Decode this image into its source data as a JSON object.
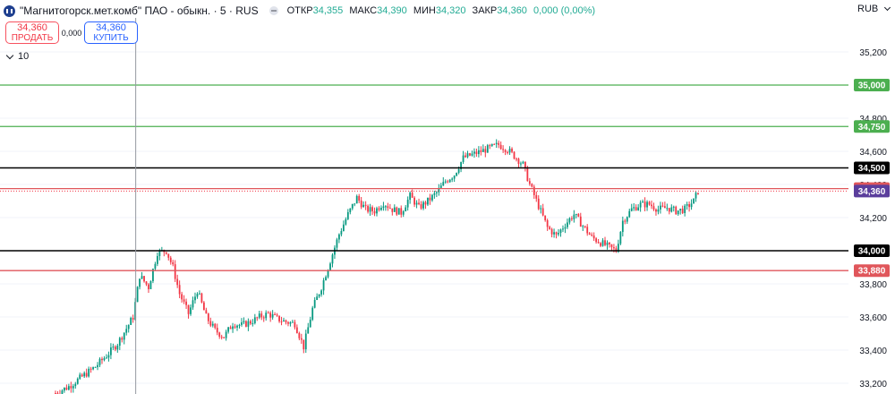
{
  "header": {
    "title": "\"Магнитогорск.мет.комб\" ПАО - обыкн. · 5 · RUS",
    "ohlc": [
      {
        "label": "ОТКР",
        "value": "34,355"
      },
      {
        "label": "МАКС",
        "value": "34,390"
      },
      {
        "label": "МИН",
        "value": "34,320"
      },
      {
        "label": "ЗАКР",
        "value": "34,360"
      },
      {
        "label": "",
        "value": "0,000 (0,00%)"
      }
    ],
    "currency": "RUB"
  },
  "trade": {
    "sell_price": "34,360",
    "sell_label": "ПРОДАТЬ",
    "spread": "0,000",
    "buy_price": "34,360",
    "buy_label": "КУПИТЬ"
  },
  "volume_toggle": "10",
  "colors": {
    "up": "#089981",
    "down": "#f23645",
    "green_level": "#4caf50",
    "black_level": "#000000",
    "red_level": "#e0565b",
    "current": "#5b3e9c"
  },
  "chart_data": {
    "type": "candlestick",
    "ylim": [
      33200,
      35200
    ],
    "y_ticks": [
      "33,200",
      "33,400",
      "33,600",
      "33,800",
      "34,000",
      "34,200",
      "34,400",
      "34,600",
      "34,800",
      "35,000",
      "35,200"
    ],
    "y_tick_values": [
      33200,
      33400,
      33600,
      33800,
      34000,
      34200,
      34400,
      34600,
      34800,
      35000,
      35200
    ],
    "levels": [
      {
        "value": 35000,
        "label": "35,000",
        "color": "green"
      },
      {
        "value": 34750,
        "label": "34,750",
        "color": "green"
      },
      {
        "value": 34500,
        "label": "34,500",
        "color": "black"
      },
      {
        "value": 34375,
        "label": "34,375",
        "color": "red"
      },
      {
        "value": 34000,
        "label": "34,000",
        "color": "black"
      },
      {
        "value": 33880,
        "label": "33,880",
        "color": "red"
      }
    ],
    "current_price": {
      "value": 34360,
      "label": "34,360"
    },
    "close_path": [
      [
        0,
        33140
      ],
      [
        6,
        33180
      ],
      [
        12,
        33240
      ],
      [
        18,
        33300
      ],
      [
        24,
        33380
      ],
      [
        28,
        33440
      ],
      [
        32,
        33530
      ],
      [
        35,
        33600
      ],
      [
        38,
        33850
      ],
      [
        42,
        33780
      ],
      [
        46,
        33990
      ],
      [
        50,
        34000
      ],
      [
        53,
        33900
      ],
      [
        56,
        33740
      ],
      [
        60,
        33620
      ],
      [
        64,
        33760
      ],
      [
        68,
        33600
      ],
      [
        72,
        33520
      ],
      [
        76,
        33480
      ],
      [
        80,
        33560
      ],
      [
        84,
        33550
      ],
      [
        88,
        33570
      ],
      [
        92,
        33600
      ],
      [
        96,
        33620
      ],
      [
        100,
        33590
      ],
      [
        104,
        33570
      ],
      [
        108,
        33560
      ],
      [
        112,
        33420
      ],
      [
        116,
        33650
      ],
      [
        120,
        33780
      ],
      [
        124,
        33940
      ],
      [
        128,
        34100
      ],
      [
        132,
        34220
      ],
      [
        136,
        34320
      ],
      [
        140,
        34250
      ],
      [
        144,
        34240
      ],
      [
        148,
        34290
      ],
      [
        152,
        34250
      ],
      [
        156,
        34230
      ],
      [
        160,
        34330
      ],
      [
        164,
        34260
      ],
      [
        168,
        34300
      ],
      [
        172,
        34350
      ],
      [
        176,
        34420
      ],
      [
        180,
        34460
      ],
      [
        184,
        34560
      ],
      [
        188,
        34580
      ],
      [
        192,
        34600
      ],
      [
        196,
        34620
      ],
      [
        200,
        34640
      ],
      [
        204,
        34610
      ],
      [
        208,
        34560
      ],
      [
        211,
        34520
      ],
      [
        214,
        34400
      ],
      [
        218,
        34270
      ],
      [
        222,
        34140
      ],
      [
        226,
        34090
      ],
      [
        230,
        34160
      ],
      [
        234,
        34220
      ],
      [
        238,
        34150
      ],
      [
        242,
        34080
      ],
      [
        246,
        34050
      ],
      [
        250,
        34020
      ],
      [
        253,
        34000
      ],
      [
        256,
        34180
      ],
      [
        260,
        34250
      ],
      [
        264,
        34280
      ],
      [
        268,
        34280
      ],
      [
        272,
        34250
      ],
      [
        276,
        34260
      ],
      [
        280,
        34240
      ],
      [
        284,
        34250
      ],
      [
        288,
        34300
      ],
      [
        290,
        34360
      ]
    ],
    "crosshair_x": 36
  }
}
